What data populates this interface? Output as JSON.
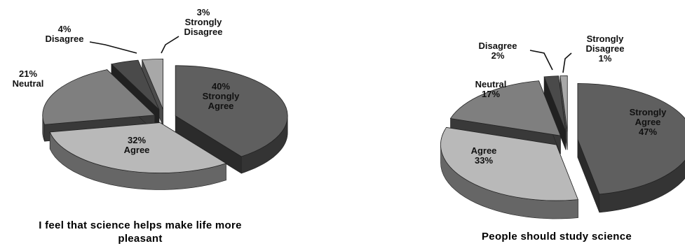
{
  "chart_data": [
    {
      "type": "pie",
      "style": "3d-exploded",
      "title": "I feel that science helps make life more pleasant",
      "title_lines": [
        "I feel that science helps make life more",
        "pleasant"
      ],
      "slices": [
        {
          "label": "Strongly Agree",
          "value": 40,
          "percent": "40%",
          "label_lines": [
            "40%",
            "Strongly",
            "Agree"
          ],
          "color": "#5f5f5f"
        },
        {
          "label": "Agree",
          "value": 32,
          "percent": "32%",
          "label_lines": [
            "32%",
            "Agree"
          ],
          "color": "#b9b9b9"
        },
        {
          "label": "Neutral",
          "value": 21,
          "percent": "21%",
          "label_lines": [
            "21%",
            "Neutral"
          ],
          "color": "#7f7f7f"
        },
        {
          "label": "Disagree",
          "value": 4,
          "percent": "4%",
          "label_lines": [
            "4%",
            "Disagree"
          ],
          "color": "#4a4a4a"
        },
        {
          "label": "Strongly Disagree",
          "value": 3,
          "percent": "3%",
          "label_lines": [
            "3%",
            "Strongly",
            "Disagree"
          ],
          "color": "#a8a8a8"
        }
      ]
    },
    {
      "type": "pie",
      "style": "3d-exploded",
      "title": "People should study science",
      "title_lines": [
        "People should study science"
      ],
      "slices": [
        {
          "label": "Strongly Agree",
          "value": 47,
          "percent": "47%",
          "label_lines": [
            "Strongly",
            "Agree",
            "47%"
          ],
          "color": "#5f5f5f"
        },
        {
          "label": "Agree",
          "value": 33,
          "percent": "33%",
          "label_lines": [
            "Agree",
            "33%"
          ],
          "color": "#b9b9b9"
        },
        {
          "label": "Neutral",
          "value": 17,
          "percent": "17%",
          "label_lines": [
            "Neutral",
            "17%"
          ],
          "color": "#7f7f7f"
        },
        {
          "label": "Disagree",
          "value": 2,
          "percent": "2%",
          "label_lines": [
            "Disagree",
            "2%"
          ],
          "color": "#4a4a4a"
        },
        {
          "label": "Strongly Disagree",
          "value": 1,
          "percent": "1%",
          "label_lines": [
            "Strongly",
            "Disagree",
            "1%"
          ],
          "color": "#a8a8a8"
        }
      ]
    }
  ]
}
